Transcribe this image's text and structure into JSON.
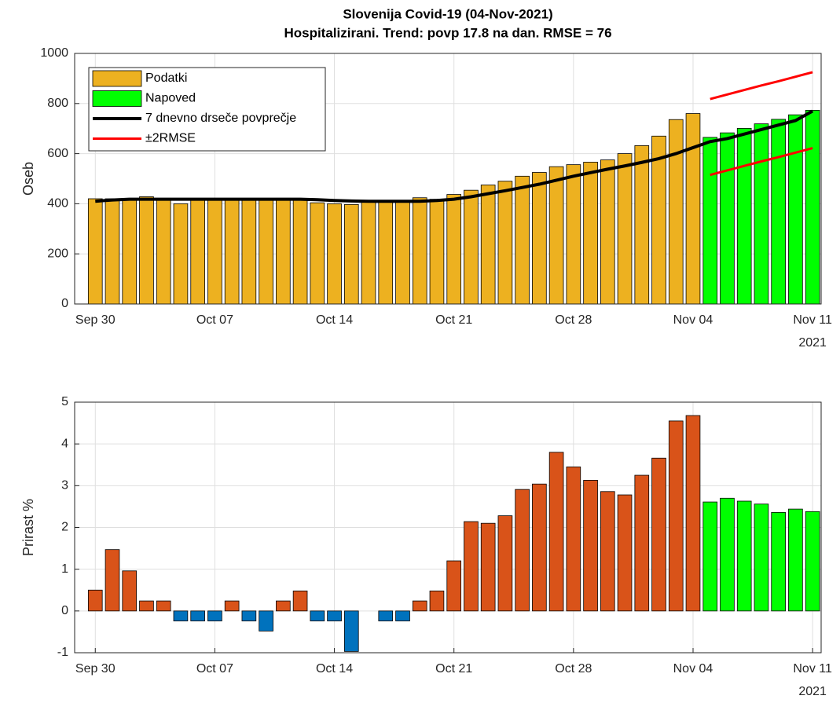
{
  "chart_data": [
    {
      "type": "bar",
      "title": "Slovenija Covid-19 (04-Nov-2021)",
      "subtitle": "Hospitalizirani. Trend: povp 17.8 na dan. RMSE = 76",
      "ylabel": "Oseb",
      "x": [
        "2021-09-30",
        "2021-10-01",
        "2021-10-02",
        "2021-10-03",
        "2021-10-04",
        "2021-10-05",
        "2021-10-06",
        "2021-10-07",
        "2021-10-08",
        "2021-10-09",
        "2021-10-10",
        "2021-10-11",
        "2021-10-12",
        "2021-10-13",
        "2021-10-14",
        "2021-10-15",
        "2021-10-16",
        "2021-10-17",
        "2021-10-18",
        "2021-10-19",
        "2021-10-20",
        "2021-10-21",
        "2021-10-22",
        "2021-10-23",
        "2021-10-24",
        "2021-10-25",
        "2021-10-26",
        "2021-10-27",
        "2021-10-28",
        "2021-10-29",
        "2021-10-30",
        "2021-10-31",
        "2021-11-01",
        "2021-11-02",
        "2021-11-03",
        "2021-11-04",
        "2021-11-05",
        "2021-11-06",
        "2021-11-07",
        "2021-11-08",
        "2021-11-09",
        "2021-11-10",
        "2021-11-11"
      ],
      "xlim": [
        "2021-09-28T19:00:00Z",
        "2021-11-11T12:00:00Z"
      ],
      "xticks": [
        {
          "value": "2021-09-30",
          "label": "Sep 30"
        },
        {
          "value": "2021-10-07",
          "label": "Oct 07"
        },
        {
          "value": "2021-10-14",
          "label": "Oct 14"
        },
        {
          "value": "2021-10-21",
          "label": "Oct 21"
        },
        {
          "value": "2021-10-28",
          "label": "Oct 28"
        },
        {
          "value": "2021-11-04",
          "label": "Nov 04"
        },
        {
          "value": "2021-11-11",
          "label": "Nov 11"
        }
      ],
      "x_year_label": "2021",
      "ylim": [
        0,
        1000
      ],
      "yticks": [
        0,
        200,
        400,
        600,
        800,
        1000
      ],
      "grid": true,
      "legend": "upper-left",
      "series": [
        {
          "name": "Podatki",
          "kind": "bar",
          "color": "#edb120",
          "values": [
            420,
            420,
            420,
            428,
            422,
            400,
            418,
            420,
            418,
            420,
            418,
            422,
            420,
            404,
            400,
            397,
            410,
            410,
            413,
            424,
            418,
            437,
            454,
            475,
            490,
            510,
            525,
            548,
            556,
            566,
            575,
            600,
            632,
            670,
            736,
            760,
            null,
            null,
            null,
            null,
            null,
            null,
            null
          ]
        },
        {
          "name": "Napoved",
          "kind": "bar",
          "color": "#00ff00",
          "values": [
            null,
            null,
            null,
            null,
            null,
            null,
            null,
            null,
            null,
            null,
            null,
            null,
            null,
            null,
            null,
            null,
            null,
            null,
            null,
            null,
            null,
            null,
            null,
            null,
            null,
            null,
            null,
            null,
            null,
            null,
            null,
            null,
            null,
            null,
            null,
            null,
            665,
            683,
            701,
            719,
            737,
            755,
            773
          ]
        },
        {
          "name": "7 dnevno drseče povprečje",
          "kind": "line",
          "color": "#000000",
          "width": 4,
          "values": [
            410,
            415,
            418,
            418,
            418,
            418,
            418,
            418,
            418,
            418,
            418,
            418,
            418,
            416,
            413,
            411,
            410,
            410,
            410,
            410,
            413,
            418,
            428,
            440,
            452,
            465,
            478,
            494,
            510,
            524,
            538,
            551,
            565,
            580,
            600,
            624,
            648,
            660,
            678,
            696,
            714,
            732,
            770
          ]
        },
        {
          "name": "±2RMSE",
          "kind": "band-lines",
          "color": "#ff0000",
          "width": 3,
          "upper": [
            null,
            null,
            null,
            null,
            null,
            null,
            null,
            null,
            null,
            null,
            null,
            null,
            null,
            null,
            null,
            null,
            null,
            null,
            null,
            null,
            null,
            null,
            null,
            null,
            null,
            null,
            null,
            null,
            null,
            null,
            null,
            null,
            null,
            null,
            null,
            null,
            818,
            836,
            854,
            872,
            889,
            907,
            925
          ],
          "lower": [
            null,
            null,
            null,
            null,
            null,
            null,
            null,
            null,
            null,
            null,
            null,
            null,
            null,
            null,
            null,
            null,
            null,
            null,
            null,
            null,
            null,
            null,
            null,
            null,
            null,
            null,
            null,
            null,
            null,
            null,
            null,
            null,
            null,
            null,
            null,
            null,
            515,
            533,
            551,
            569,
            586,
            604,
            622
          ]
        }
      ]
    },
    {
      "type": "bar",
      "ylabel": "Prirast %",
      "x": [
        "2021-09-30",
        "2021-10-01",
        "2021-10-02",
        "2021-10-03",
        "2021-10-04",
        "2021-10-05",
        "2021-10-06",
        "2021-10-07",
        "2021-10-08",
        "2021-10-09",
        "2021-10-10",
        "2021-10-11",
        "2021-10-12",
        "2021-10-13",
        "2021-10-14",
        "2021-10-15",
        "2021-10-16",
        "2021-10-17",
        "2021-10-18",
        "2021-10-19",
        "2021-10-20",
        "2021-10-21",
        "2021-10-22",
        "2021-10-23",
        "2021-10-24",
        "2021-10-25",
        "2021-10-26",
        "2021-10-27",
        "2021-10-28",
        "2021-10-29",
        "2021-10-30",
        "2021-10-31",
        "2021-11-01",
        "2021-11-02",
        "2021-11-03",
        "2021-11-04",
        "2021-11-05",
        "2021-11-06",
        "2021-11-07",
        "2021-11-08",
        "2021-11-09",
        "2021-11-10",
        "2021-11-11"
      ],
      "xlim": [
        "2021-09-28T19:00:00Z",
        "2021-11-11T12:00:00Z"
      ],
      "xticks": [
        {
          "value": "2021-09-30",
          "label": "Sep 30"
        },
        {
          "value": "2021-10-07",
          "label": "Oct 07"
        },
        {
          "value": "2021-10-14",
          "label": "Oct 14"
        },
        {
          "value": "2021-10-21",
          "label": "Oct 21"
        },
        {
          "value": "2021-10-28",
          "label": "Oct 28"
        },
        {
          "value": "2021-11-04",
          "label": "Nov 04"
        },
        {
          "value": "2021-11-11",
          "label": "Nov 11"
        }
      ],
      "x_year_label": "2021",
      "ylim": [
        -1,
        5
      ],
      "yticks": [
        -1,
        0,
        1,
        2,
        3,
        4,
        5
      ],
      "grid": true,
      "series": [
        {
          "kind": "bar",
          "color": "#d95319",
          "color_negative": "#0072bd",
          "values": [
            0.5,
            1.47,
            0.96,
            0.24,
            0.24,
            -0.24,
            -0.24,
            -0.24,
            0.24,
            -0.24,
            -0.48,
            0.24,
            0.48,
            -0.24,
            -0.24,
            -0.97,
            0,
            -0.24,
            -0.24,
            0.24,
            0.48,
            1.2,
            2.14,
            2.1,
            2.28,
            2.91,
            3.04,
            3.8,
            3.45,
            3.13,
            2.86,
            2.78,
            3.25,
            3.66,
            4.55,
            4.68,
            null,
            null,
            null,
            null,
            null,
            null,
            null
          ]
        },
        {
          "kind": "bar",
          "color": "#00ff00",
          "values": [
            null,
            null,
            null,
            null,
            null,
            null,
            null,
            null,
            null,
            null,
            null,
            null,
            null,
            null,
            null,
            null,
            null,
            null,
            null,
            null,
            null,
            null,
            null,
            null,
            null,
            null,
            null,
            null,
            null,
            null,
            null,
            null,
            null,
            null,
            null,
            null,
            2.61,
            2.7,
            2.63,
            2.56,
            2.36,
            2.44,
            2.38
          ]
        }
      ]
    }
  ]
}
